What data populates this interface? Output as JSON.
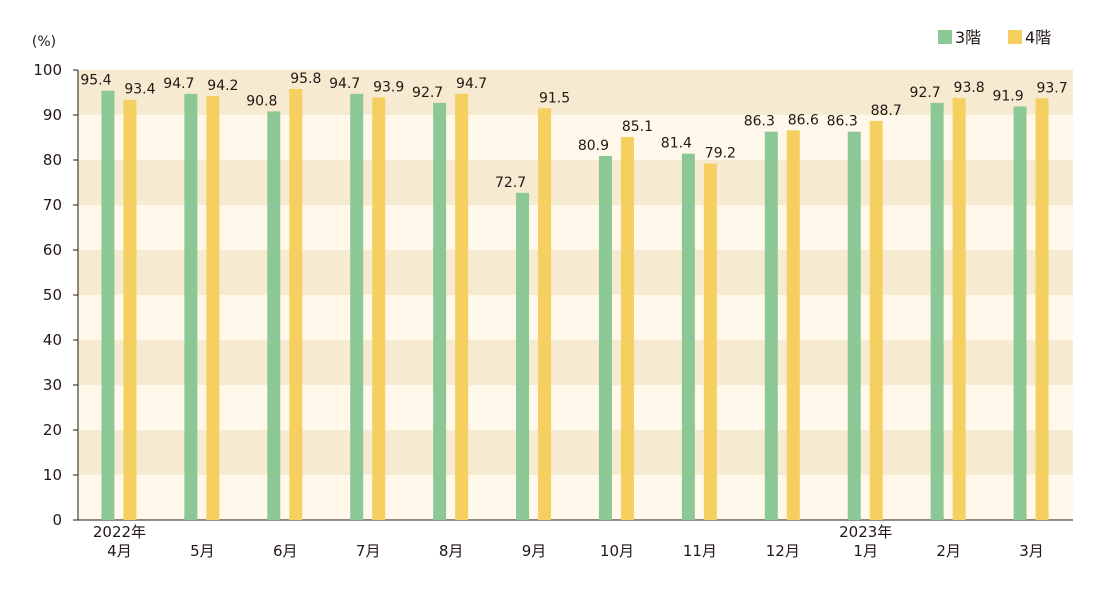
{
  "chart_data": {
    "type": "bar",
    "title": "",
    "unit_label": "(%)",
    "ylim": [
      0,
      100
    ],
    "yticks": [
      0,
      10,
      20,
      30,
      40,
      50,
      60,
      70,
      80,
      90,
      100
    ],
    "categories": [
      {
        "year": "2022年",
        "month": "4月"
      },
      {
        "year": "",
        "month": "5月"
      },
      {
        "year": "",
        "month": "6月"
      },
      {
        "year": "",
        "month": "7月"
      },
      {
        "year": "",
        "month": "8月"
      },
      {
        "year": "",
        "month": "9月"
      },
      {
        "year": "",
        "month": "10月"
      },
      {
        "year": "",
        "month": "11月"
      },
      {
        "year": "",
        "month": "12月"
      },
      {
        "year": "2023年",
        "month": "1月"
      },
      {
        "year": "",
        "month": "2月"
      },
      {
        "year": "",
        "month": "3月"
      }
    ],
    "series": [
      {
        "name": "3階",
        "color": "#8cc896",
        "values": [
          95.4,
          94.7,
          90.8,
          94.7,
          92.7,
          72.7,
          80.9,
          81.4,
          86.3,
          86.3,
          92.7,
          91.9
        ]
      },
      {
        "name": "4階",
        "color": "#f5d060",
        "values": [
          93.4,
          94.2,
          95.8,
          93.9,
          94.7,
          91.5,
          85.1,
          79.2,
          86.6,
          88.7,
          93.8,
          93.7
        ]
      }
    ],
    "band_colors": [
      "#f6ead0",
      "#fff8eb"
    ],
    "legend": "top-right"
  }
}
